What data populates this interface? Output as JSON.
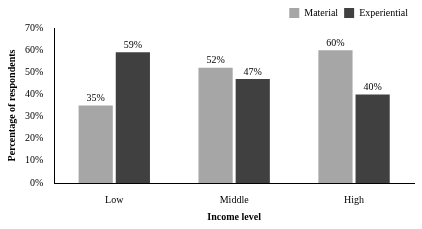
{
  "chart_data": {
    "type": "bar",
    "x_label": "Income level",
    "y_label": "Percentage of respondents",
    "categories": [
      "Low",
      "Middle",
      "High"
    ],
    "series": [
      {
        "name": "Material",
        "color": "#a6a6a6",
        "values": [
          35,
          52,
          60
        ],
        "value_labels": [
          "35%",
          "52%",
          "60%"
        ]
      },
      {
        "name": "Experiential",
        "color": "#404040",
        "values": [
          59,
          47,
          40
        ],
        "value_labels": [
          "59%",
          "47%",
          "40%"
        ]
      }
    ],
    "ylim": [
      0,
      70
    ],
    "yticks": [
      {
        "value": 0,
        "label": "0%"
      },
      {
        "value": 10,
        "label": "10%"
      },
      {
        "value": 20,
        "label": "20%"
      },
      {
        "value": 30,
        "label": "30%"
      },
      {
        "value": 40,
        "label": "40%"
      },
      {
        "value": 50,
        "label": "50%"
      },
      {
        "value": 60,
        "label": "60%"
      },
      {
        "value": 70,
        "label": "70%"
      }
    ],
    "grid": false,
    "legend": "upper right",
    "data_labels": true
  }
}
